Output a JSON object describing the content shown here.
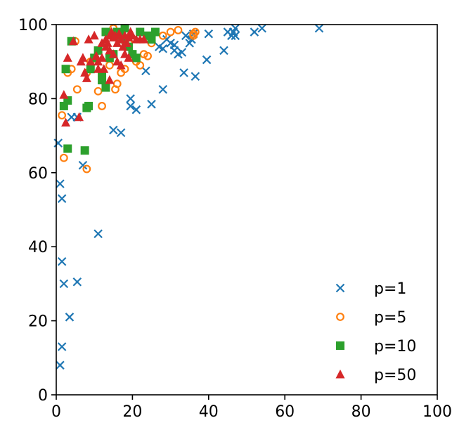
{
  "chart_data": {
    "type": "scatter",
    "title": "",
    "xlabel": "",
    "ylabel": "",
    "xlim": [
      0,
      100
    ],
    "ylim": [
      0,
      100
    ],
    "grid": false,
    "legend_position": "bottom-right",
    "x_ticks": [
      "0",
      "20",
      "40",
      "60",
      "80",
      "100"
    ],
    "y_ticks": [
      "0",
      "20",
      "40",
      "60",
      "80",
      "100"
    ],
    "series": [
      {
        "name": "p=1",
        "marker": "x",
        "color": "#1f77b4",
        "points": [
          [
            0.5,
            68
          ],
          [
            1,
            57
          ],
          [
            1.5,
            53
          ],
          [
            1.5,
            36
          ],
          [
            2,
            30
          ],
          [
            1.5,
            13
          ],
          [
            1,
            8
          ],
          [
            3.5,
            21
          ],
          [
            5.5,
            30.5
          ],
          [
            4,
            75
          ],
          [
            5.5,
            75
          ],
          [
            7,
            62
          ],
          [
            11,
            43.5
          ],
          [
            15,
            71.5
          ],
          [
            17,
            70.8
          ],
          [
            19.5,
            80
          ],
          [
            19.5,
            78
          ],
          [
            21,
            77
          ],
          [
            25,
            78.5
          ],
          [
            28,
            82.5
          ],
          [
            23.5,
            87.5
          ],
          [
            33.5,
            87
          ],
          [
            36.5,
            86
          ],
          [
            32,
            92
          ],
          [
            33,
            92.5
          ],
          [
            31,
            93
          ],
          [
            30,
            95
          ],
          [
            29,
            96
          ],
          [
            27,
            94
          ],
          [
            28,
            93.5
          ],
          [
            31,
            94.5
          ],
          [
            35,
            95
          ],
          [
            35.5,
            96
          ],
          [
            36,
            97.5
          ],
          [
            34,
            97
          ],
          [
            39.5,
            90.5
          ],
          [
            44,
            93
          ],
          [
            40,
            97.5
          ],
          [
            45,
            98
          ],
          [
            46,
            97
          ],
          [
            46.5,
            98
          ],
          [
            47,
            97
          ],
          [
            47,
            99
          ],
          [
            52,
            98
          ],
          [
            54,
            99
          ],
          [
            69,
            99
          ]
        ]
      },
      {
        "name": "p=5",
        "marker": "o",
        "color": "#ff7f0e",
        "points": [
          [
            1.5,
            75.5
          ],
          [
            2,
            64
          ],
          [
            3,
            87
          ],
          [
            4,
            88
          ],
          [
            5.5,
            82.5
          ],
          [
            5,
            95.5
          ],
          [
            8,
            61
          ],
          [
            8,
            87
          ],
          [
            9,
            90
          ],
          [
            11,
            82
          ],
          [
            12,
            78
          ],
          [
            13,
            83
          ],
          [
            14,
            89
          ],
          [
            15.5,
            82.5
          ],
          [
            16,
            84
          ],
          [
            17,
            87
          ],
          [
            18,
            88
          ],
          [
            19,
            95
          ],
          [
            20,
            92
          ],
          [
            21,
            90
          ],
          [
            22,
            89
          ],
          [
            23,
            92
          ],
          [
            24,
            91.5
          ],
          [
            25,
            95
          ],
          [
            28,
            97
          ],
          [
            30,
            98
          ],
          [
            32,
            98.5
          ],
          [
            36,
            97
          ],
          [
            36.5,
            98
          ],
          [
            36,
            97.5
          ],
          [
            15,
            99
          ],
          [
            18,
            99
          ],
          [
            22,
            98
          ]
        ]
      },
      {
        "name": "p=10",
        "marker": "s",
        "color": "#2ca02c",
        "points": [
          [
            2,
            78
          ],
          [
            3,
            79.5
          ],
          [
            3,
            66.5
          ],
          [
            2.5,
            88
          ],
          [
            4,
            95.5
          ],
          [
            7.5,
            66
          ],
          [
            8,
            77.5
          ],
          [
            8.5,
            78
          ],
          [
            9,
            88
          ],
          [
            10,
            91
          ],
          [
            11,
            93
          ],
          [
            12,
            87
          ],
          [
            13,
            83
          ],
          [
            12,
            85
          ],
          [
            14,
            91
          ],
          [
            15,
            92
          ],
          [
            16,
            98
          ],
          [
            17,
            97
          ],
          [
            18,
            96
          ],
          [
            19,
            94
          ],
          [
            20,
            92
          ],
          [
            21,
            91
          ],
          [
            24,
            97
          ],
          [
            25,
            96
          ],
          [
            26,
            98
          ],
          [
            22,
            98
          ],
          [
            18,
            99
          ],
          [
            13,
            98
          ]
        ]
      },
      {
        "name": "p=50",
        "marker": "^",
        "color": "#d62728",
        "points": [
          [
            2,
            81
          ],
          [
            2.5,
            73.5
          ],
          [
            3,
            91
          ],
          [
            4.5,
            95.5
          ],
          [
            6,
            75
          ],
          [
            6.5,
            90
          ],
          [
            7,
            91
          ],
          [
            7.5,
            87
          ],
          [
            8,
            85.5
          ],
          [
            8.5,
            96
          ],
          [
            9,
            90
          ],
          [
            10,
            97
          ],
          [
            10.5,
            91.5
          ],
          [
            11,
            90
          ],
          [
            12,
            91
          ],
          [
            12.5,
            88
          ],
          [
            13,
            96
          ],
          [
            13.5,
            95
          ],
          [
            14,
            97
          ],
          [
            14.5,
            98
          ],
          [
            15,
            96.5
          ],
          [
            15.5,
            97
          ],
          [
            16,
            95
          ],
          [
            16.5,
            97.5
          ],
          [
            17,
            96
          ],
          [
            17.5,
            94
          ],
          [
            18,
            97
          ],
          [
            18.5,
            95
          ],
          [
            19,
            96.5
          ],
          [
            19.5,
            98
          ],
          [
            20,
            97
          ],
          [
            21,
            96
          ],
          [
            22,
            96
          ],
          [
            23,
            96
          ],
          [
            14,
            93
          ],
          [
            15,
            92
          ],
          [
            16,
            90
          ],
          [
            17,
            89
          ],
          [
            18,
            92
          ],
          [
            19,
            91
          ],
          [
            13,
            94
          ],
          [
            12,
            95
          ],
          [
            11,
            88
          ],
          [
            14,
            85
          ]
        ]
      }
    ]
  }
}
